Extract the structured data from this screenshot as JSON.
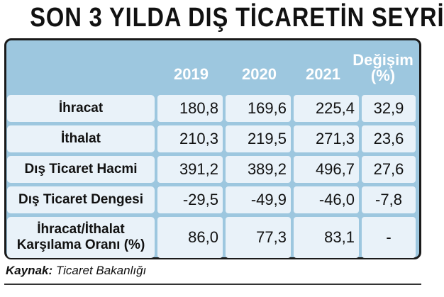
{
  "title": "SON 3 YILDA DIŞ TİCARETİN SEYRİ",
  "header": {
    "years": [
      "2019",
      "2020",
      "2021"
    ],
    "change_line1": "Değişim",
    "change_line2": "(%)"
  },
  "rows": [
    {
      "label": "İhracat",
      "v2019": "180,8",
      "v2020": "169,6",
      "v2021": "225,4",
      "change": "32,9"
    },
    {
      "label": "İthalat",
      "v2019": "210,3",
      "v2020": "219,5",
      "v2021": "271,3",
      "change": "23,6"
    },
    {
      "label": "Dış Ticaret Hacmi",
      "v2019": "391,2",
      "v2020": "389,2",
      "v2021": "496,7",
      "change": "27,6"
    },
    {
      "label": "Dış Ticaret Dengesi",
      "v2019": "-29,5",
      "v2020": "-49,9",
      "v2021": "-46,0",
      "change": "-7,8"
    },
    {
      "label_line1": "İhracat/İthalat",
      "label_line2": "Karşılama Oranı (%)",
      "v2019": "86,0",
      "v2020": "77,3",
      "v2021": "83,1",
      "change": "-"
    }
  ],
  "source": {
    "prefix": "Kaynak:",
    "text": " Ticaret Bakanlığı"
  },
  "colors": {
    "panel": "#9dc7df",
    "cell": "#e9f2f9",
    "header_text": "#ffffff"
  }
}
